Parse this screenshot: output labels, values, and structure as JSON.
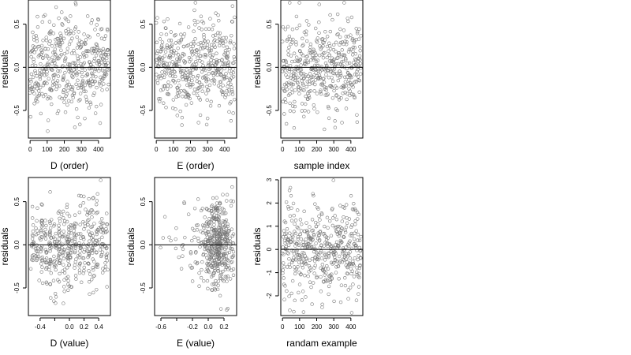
{
  "chart_data": [
    {
      "type": "scatter",
      "xlabel": "D (order)",
      "ylabel": "residuals",
      "xlim": [
        -10,
        470
      ],
      "ylim": [
        -0.82,
        0.78
      ],
      "xticks": [
        0,
        100,
        200,
        300,
        400
      ],
      "xtick_labels": [
        "0",
        "100",
        "200",
        "300",
        "400"
      ],
      "yticks": [
        -0.5,
        0.0,
        0.5
      ],
      "ytick_labels": [
        "-0.5",
        "0.0",
        "0.5"
      ],
      "reference_line_y": 0,
      "generator": {
        "kind": "index",
        "n": 460,
        "sd": 0.26,
        "seed": 11
      }
    },
    {
      "type": "scatter",
      "xlabel": "E (order)",
      "ylabel": "residuals",
      "xlim": [
        -10,
        470
      ],
      "ylim": [
        -0.82,
        0.78
      ],
      "xticks": [
        0,
        100,
        200,
        300,
        400
      ],
      "xtick_labels": [
        "0",
        "100",
        "200",
        "300",
        "400"
      ],
      "yticks": [
        -0.5,
        0.0,
        0.5
      ],
      "ytick_labels": [
        "-0.5",
        "0.0",
        "0.5"
      ],
      "reference_line_y": 0,
      "generator": {
        "kind": "index",
        "n": 460,
        "sd": 0.26,
        "seed": 23
      }
    },
    {
      "type": "scatter",
      "xlabel": "sample index",
      "ylabel": "residuals",
      "xlim": [
        -10,
        470
      ],
      "ylim": [
        -0.82,
        0.78
      ],
      "xticks": [
        0,
        100,
        200,
        300,
        400
      ],
      "xtick_labels": [
        "0",
        "100",
        "200",
        "300",
        "400"
      ],
      "yticks": [
        -0.5,
        0.0,
        0.5
      ],
      "ytick_labels": [
        "-0.5",
        "0.0",
        "0.5"
      ],
      "reference_line_y": 0,
      "generator": {
        "kind": "index",
        "n": 460,
        "sd": 0.26,
        "seed": 37
      }
    },
    {
      "type": "scatter",
      "xlabel": "D (value)",
      "ylabel": "residuals",
      "xlim": [
        -0.56,
        0.56
      ],
      "ylim": [
        -0.82,
        0.78
      ],
      "xticks": [
        -0.4,
        -0.2,
        0.0,
        0.2,
        0.4
      ],
      "xtick_labels": [
        "-0.4",
        "",
        "0.0",
        "0.2",
        "0.4"
      ],
      "yticks": [
        -0.5,
        0.0,
        0.5
      ],
      "ytick_labels": [
        "-0.5",
        "0.0",
        "0.5"
      ],
      "reference_line_y": 0,
      "generator": {
        "kind": "columns",
        "n": 460,
        "sd": 0.24,
        "seed": 41,
        "columns": [
          -0.5,
          -0.44,
          -0.38,
          -0.32,
          -0.26,
          -0.2,
          -0.14,
          -0.08,
          -0.02,
          0.02,
          0.08,
          0.14,
          0.2,
          0.26,
          0.32,
          0.38,
          0.44,
          0.5
        ],
        "jitter": 0.012
      }
    },
    {
      "type": "scatter",
      "xlabel": "E (value)",
      "ylabel": "residuals",
      "xlim": [
        -0.68,
        0.36
      ],
      "ylim": [
        -0.82,
        0.78
      ],
      "xticks": [
        -0.6,
        -0.4,
        -0.2,
        0.0,
        0.2
      ],
      "xtick_labels": [
        "-0.6",
        "",
        "-0.2",
        "0.0",
        "0.2"
      ],
      "yticks": [
        -0.5,
        0.0,
        0.5
      ],
      "ytick_labels": [
        "-0.5",
        "0.0",
        "0.5"
      ],
      "reference_line_y": 0,
      "generator": {
        "kind": "skewed",
        "n": 460,
        "sd": 0.24,
        "seed": 53,
        "x_min": -0.64,
        "x_max": 0.32,
        "mode": 0.1,
        "jitter": 0.01
      }
    },
    {
      "type": "scatter",
      "xlabel": "randam example",
      "ylabel": "residuals",
      "xlim": [
        -10,
        470
      ],
      "ylim": [
        -2.85,
        3.1
      ],
      "xticks": [
        0,
        100,
        200,
        300,
        400
      ],
      "xtick_labels": [
        "0",
        "100",
        "200",
        "300",
        "400"
      ],
      "yticks": [
        -2,
        -1,
        0,
        1,
        2,
        3
      ],
      "ytick_labels": [
        "-2",
        "-1",
        "0",
        "1",
        "2",
        "3"
      ],
      "reference_line_y": 0,
      "generator": {
        "kind": "index",
        "n": 460,
        "sd": 1.0,
        "seed": 67
      }
    }
  ]
}
